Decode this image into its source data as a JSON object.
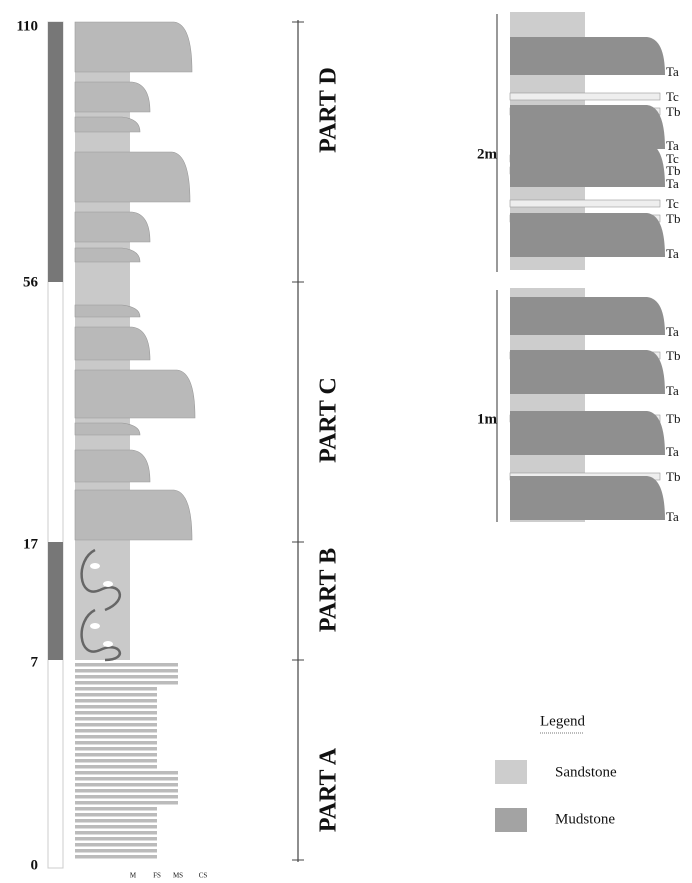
{
  "depth_labels": [
    "110",
    "56",
    "17",
    "7",
    "0"
  ],
  "parts": [
    "PART D",
    "PART C",
    "PART B",
    "PART A"
  ],
  "grain_labels": [
    "M",
    "FS",
    "MS",
    "CS"
  ],
  "upper_detail": {
    "scale": "2m",
    "beds": [
      "Ta",
      "Tc",
      "Tb",
      "Ta",
      "Tc",
      "Tb",
      "Ta",
      "Tc",
      "Tb",
      "Ta"
    ]
  },
  "lower_detail": {
    "scale": "1m",
    "beds": [
      "Ta",
      "Tb",
      "Ta",
      "Tb",
      "Ta",
      "Tb",
      "Ta"
    ]
  },
  "legend": {
    "title": "Legend",
    "items": [
      "Sandstone",
      "Mudstone"
    ]
  }
}
